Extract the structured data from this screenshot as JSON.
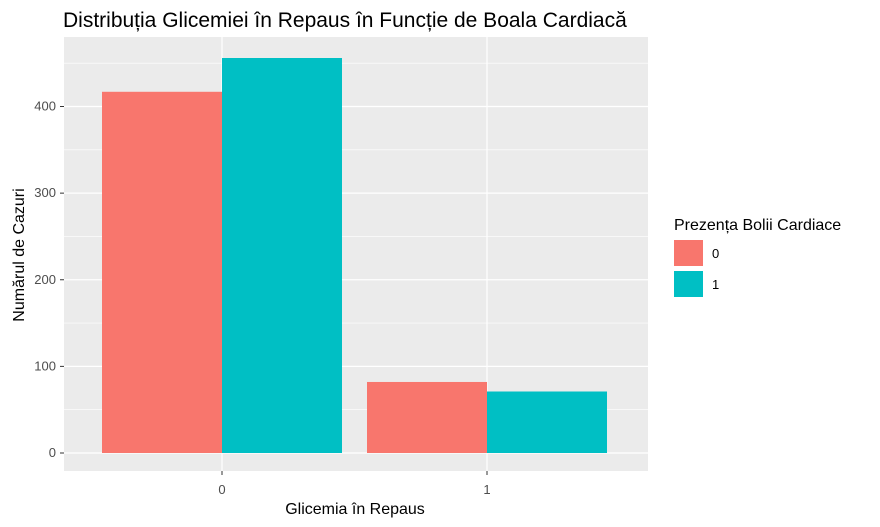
{
  "chart_data": {
    "type": "bar",
    "title": "Distribuția Glicemiei în Repaus în Funcție de Boala Cardiacă",
    "xlabel": "Glicemia în Repaus",
    "ylabel": "Numărul de Cazuri",
    "categories": [
      "0",
      "1"
    ],
    "series": [
      {
        "name": "0",
        "values": [
          417,
          82
        ],
        "color": "#F8766D"
      },
      {
        "name": "1",
        "values": [
          456,
          71
        ],
        "color": "#00BFC4"
      }
    ],
    "ylim": [
      0,
      480
    ],
    "yticks": [
      0,
      100,
      200,
      300,
      400
    ],
    "legend": {
      "title": "Prezența Bolii Cardiace",
      "position": "right"
    },
    "grid": true,
    "panel_background": "#EBEBEB",
    "grid_color": "#FFFFFF"
  }
}
